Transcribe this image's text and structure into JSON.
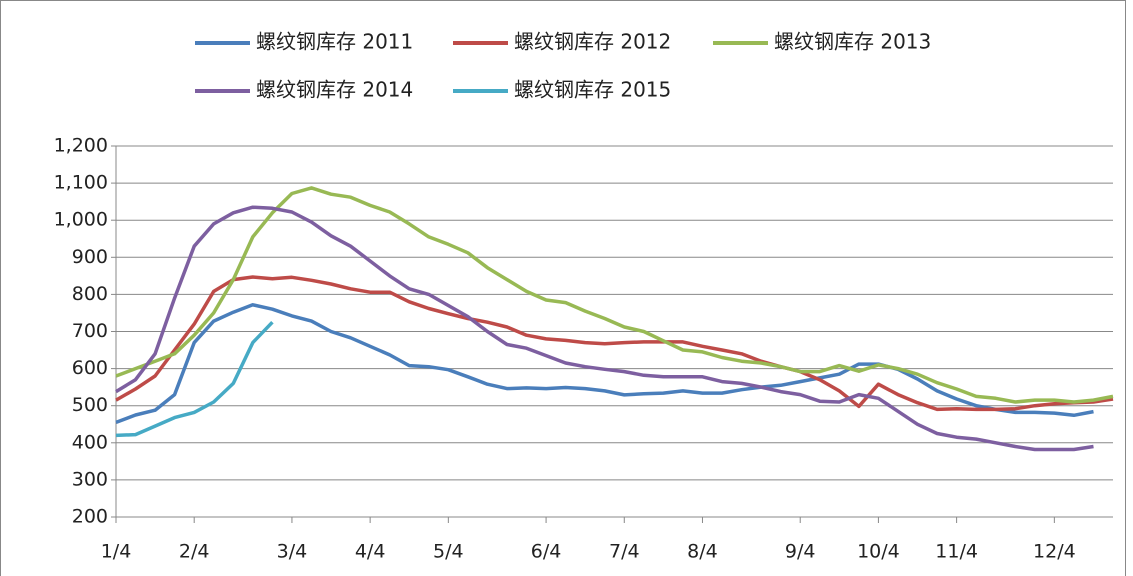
{
  "chart_data": {
    "type": "line",
    "categories": [
      "1/4",
      null,
      null,
      null,
      "2/4",
      null,
      null,
      null,
      null,
      "3/4",
      null,
      null,
      null,
      "4/4",
      null,
      null,
      null,
      "5/4",
      null,
      null,
      null,
      null,
      "6/4",
      null,
      null,
      null,
      "7/4",
      null,
      null,
      null,
      "8/4",
      null,
      null,
      null,
      null,
      "9/4",
      null,
      null,
      null,
      "10/4",
      null,
      null,
      null,
      "11/4",
      null,
      null,
      null,
      null,
      "12/4",
      null,
      null,
      null
    ],
    "series": [
      {
        "name": "螺纹钢库存 2011",
        "color": "#4a7ebb",
        "values": [
          455,
          475,
          488,
          530,
          670,
          728,
          752,
          772,
          760,
          742,
          728,
          700,
          683,
          660,
          637,
          608,
          605,
          597,
          578,
          558,
          546,
          548,
          546,
          549,
          546,
          540,
          529,
          532,
          534,
          540,
          534,
          534,
          543,
          550,
          555,
          565,
          575,
          585,
          612,
          612,
          598,
          572,
          540,
          518,
          500,
          490,
          482,
          482,
          480,
          474,
          484,
          null
        ]
      },
      {
        "name": "螺纹钢库存 2012",
        "color": "#be4b48",
        "values": [
          515,
          545,
          580,
          650,
          720,
          808,
          840,
          847,
          842,
          846,
          838,
          828,
          815,
          806,
          806,
          780,
          762,
          748,
          735,
          725,
          712,
          690,
          680,
          676,
          670,
          667,
          670,
          672,
          672,
          672,
          660,
          650,
          640,
          620,
          605,
          592,
          570,
          540,
          498,
          558,
          530,
          508,
          490,
          492,
          490,
          490,
          492,
          500,
          505,
          508,
          510,
          518
        ]
      },
      {
        "name": "螺纹钢库存 2013",
        "color": "#98b954",
        "values": [
          580,
          600,
          620,
          640,
          690,
          750,
          840,
          955,
          1020,
          1072,
          1087,
          1070,
          1062,
          1040,
          1022,
          990,
          955,
          935,
          912,
          872,
          840,
          808,
          785,
          778,
          755,
          735,
          712,
          700,
          675,
          650,
          645,
          630,
          620,
          615,
          605,
          592,
          592,
          608,
          593,
          610,
          600,
          585,
          562,
          545,
          525,
          520,
          510,
          515,
          515,
          510,
          515,
          525
        ]
      },
      {
        "name": "螺纹钢库存 2014",
        "color": "#7d5fa0",
        "values": [
          538,
          570,
          640,
          790,
          930,
          990,
          1020,
          1035,
          1032,
          1022,
          995,
          958,
          930,
          890,
          850,
          815,
          800,
          770,
          740,
          700,
          665,
          655,
          635,
          615,
          605,
          598,
          592,
          582,
          578,
          578,
          578,
          565,
          560,
          550,
          538,
          530,
          512,
          510,
          530,
          520,
          485,
          450,
          425,
          415,
          410,
          400,
          390,
          382,
          382,
          382,
          390,
          null
        ]
      },
      {
        "name": "螺纹钢库存 2015",
        "color": "#46aac5",
        "values": [
          420,
          422,
          445,
          468,
          482,
          510,
          560,
          670,
          725,
          null,
          null,
          null,
          null,
          null,
          null,
          null,
          null,
          null,
          null,
          null,
          null,
          null,
          null,
          null,
          null,
          null,
          null,
          null,
          null,
          null,
          null,
          null,
          null,
          null,
          null,
          null,
          null,
          null,
          null,
          null,
          null,
          null,
          null,
          null,
          null,
          null,
          null,
          null,
          null,
          null,
          null,
          null
        ]
      }
    ],
    "ylim": [
      200,
      1200
    ],
    "yticks": [
      200,
      300,
      400,
      500,
      600,
      700,
      800,
      900,
      {
        "value": 1000,
        "label": "1,000"
      },
      {
        "value": 1100,
        "label": "1,100"
      },
      {
        "value": 1200,
        "label": "1,200"
      }
    ],
    "grid": true
  }
}
